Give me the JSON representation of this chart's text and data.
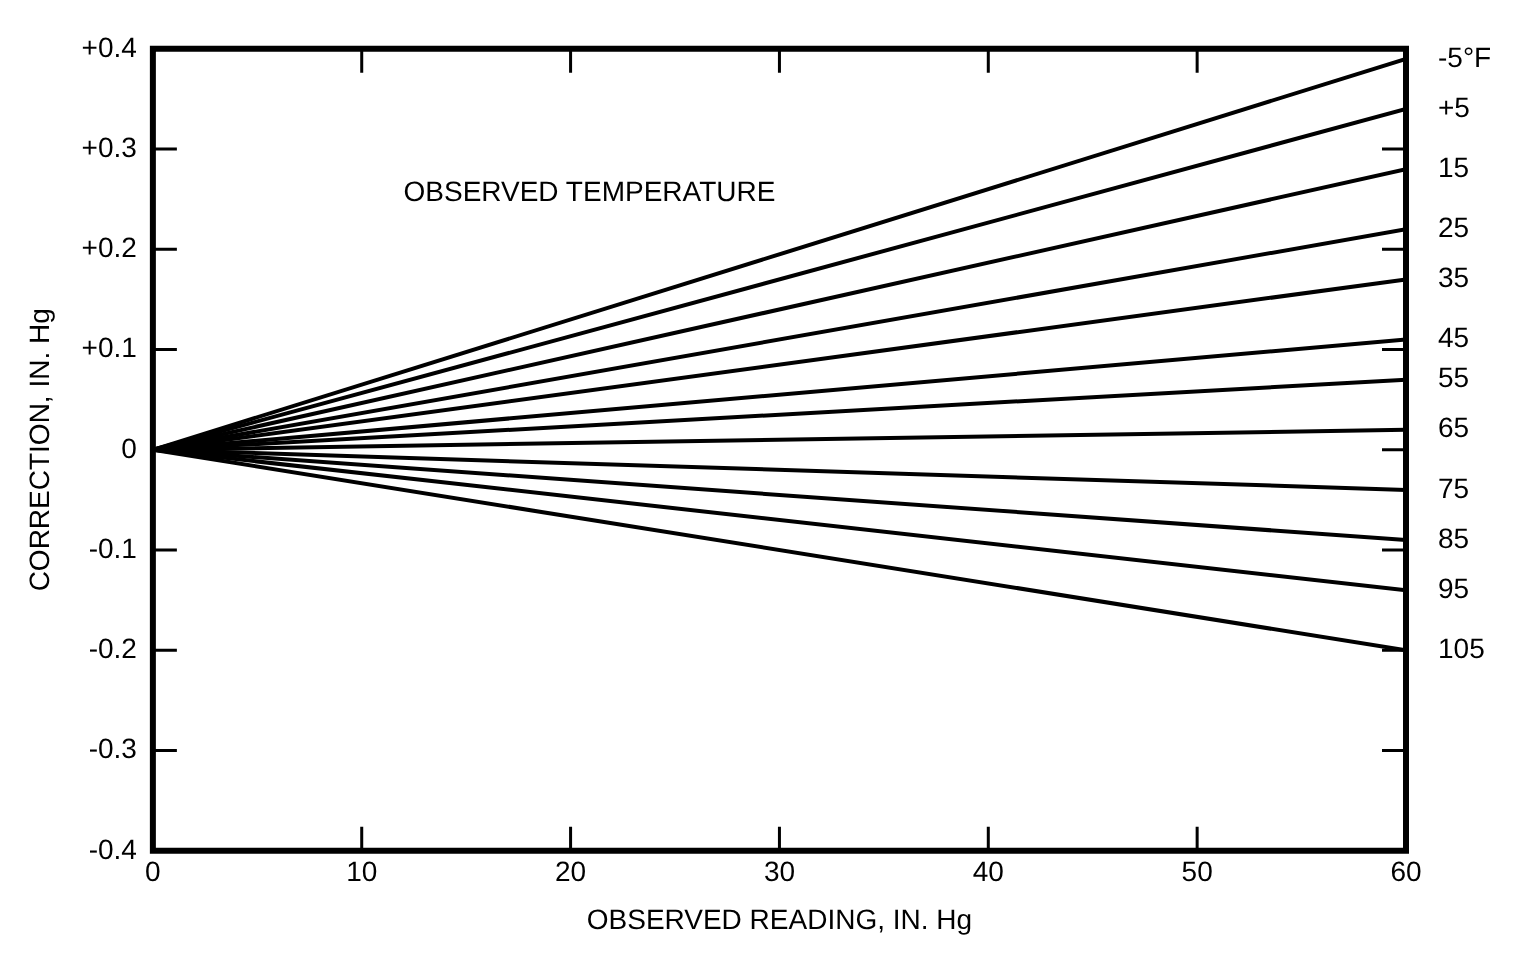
{
  "chart_data": {
    "type": "line",
    "xlabel": "OBSERVED READING, IN. Hg",
    "ylabel": "CORRECTION, IN. Hg",
    "annotations": [
      "OBSERVED TEMPERATURE"
    ],
    "x": [
      0,
      60
    ],
    "xlim": [
      0,
      60
    ],
    "xticks": [
      0,
      10,
      20,
      30,
      40,
      50,
      60
    ],
    "ylim": [
      -0.4,
      0.4
    ],
    "yticks": [
      {
        "value": 0.4,
        "label": "+0.4"
      },
      {
        "value": 0.3,
        "label": "+0.3"
      },
      {
        "value": 0.2,
        "label": "+0.2"
      },
      {
        "value": 0.1,
        "label": "+0.1"
      },
      0,
      -0.1,
      -0.2,
      -0.3,
      -0.4
    ],
    "grid": false,
    "legend": "right",
    "marker": "none",
    "line_style": "solid",
    "series": [
      {
        "name": "-5°F",
        "color": "#000000",
        "values": [
          0,
          0.39
        ]
      },
      {
        "name": "+5",
        "color": "#000000",
        "values": [
          0,
          0.34
        ]
      },
      {
        "name": "15",
        "color": "#000000",
        "values": [
          0,
          0.28
        ]
      },
      {
        "name": "25",
        "color": "#000000",
        "values": [
          0,
          0.22
        ]
      },
      {
        "name": "35",
        "color": "#000000",
        "values": [
          0,
          0.17
        ]
      },
      {
        "name": "45",
        "color": "#000000",
        "values": [
          0,
          0.11
        ]
      },
      {
        "name": "55",
        "color": "#000000",
        "values": [
          0,
          0.07
        ]
      },
      {
        "name": "65",
        "color": "#000000",
        "values": [
          0,
          0.02
        ]
      },
      {
        "name": "75",
        "color": "#000000",
        "values": [
          0,
          -0.04
        ]
      },
      {
        "name": "85",
        "color": "#000000",
        "values": [
          0,
          -0.09
        ]
      },
      {
        "name": "95",
        "color": "#000000",
        "values": [
          0,
          -0.14
        ]
      },
      {
        "name": "105",
        "color": "#000000",
        "values": [
          0,
          -0.2
        ]
      }
    ]
  }
}
